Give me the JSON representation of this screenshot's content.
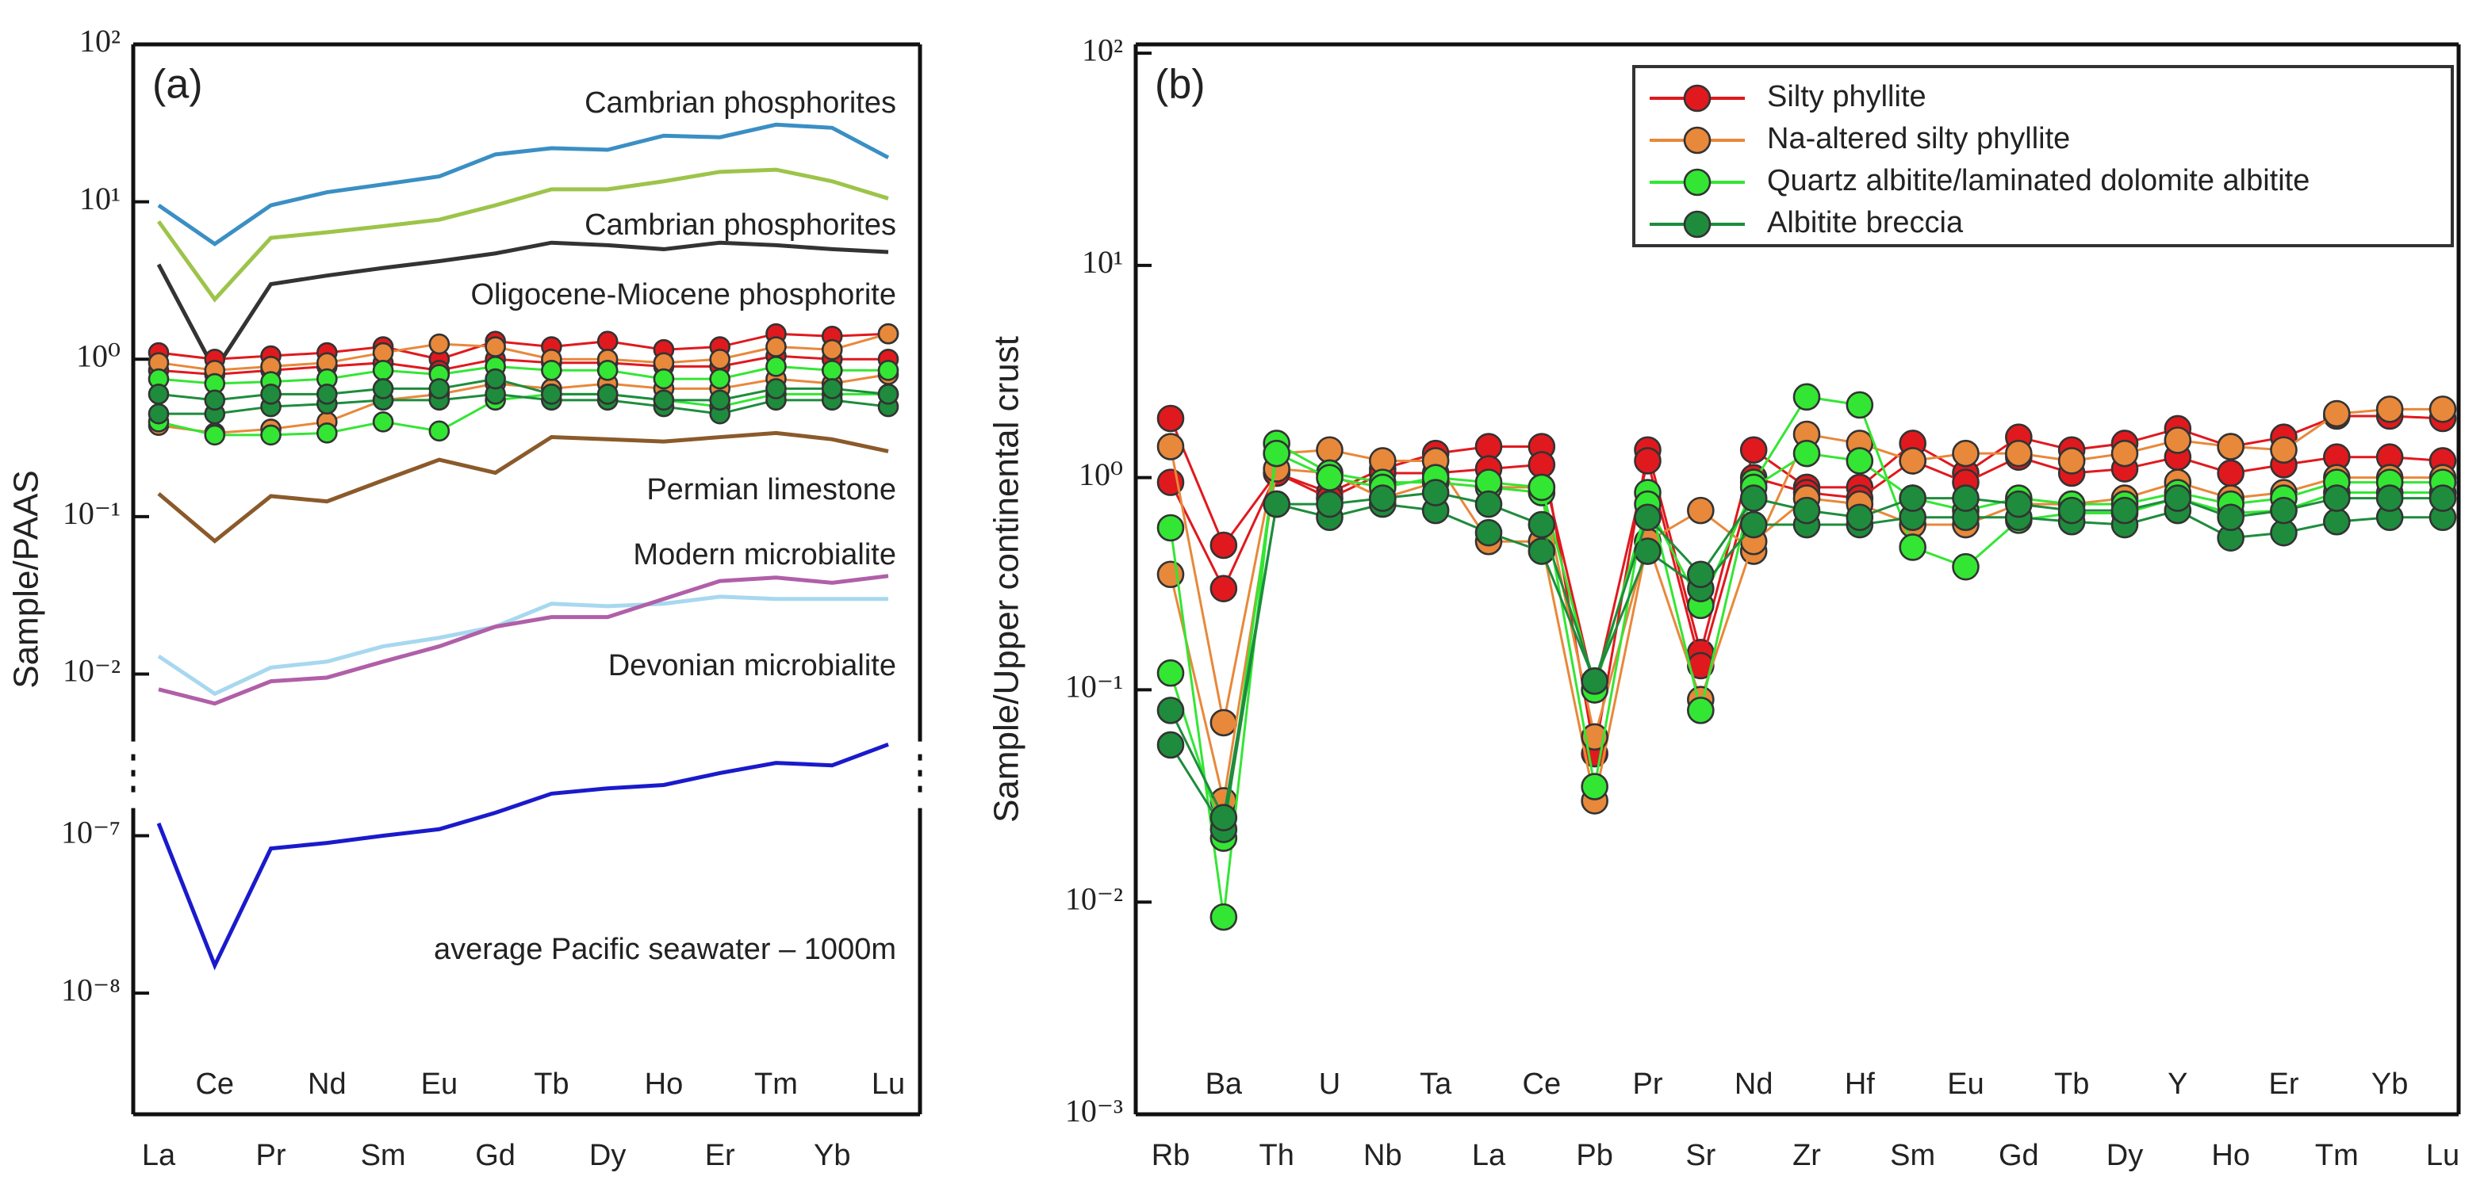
{
  "chart_data": [
    {
      "type": "line",
      "panel_label": "(a)",
      "y_label": "Sample/PAAS",
      "log_y": true,
      "categories": [
        "La",
        "Ce",
        "Pr",
        "Nd",
        "Sm",
        "Eu",
        "Gd",
        "Tb",
        "Dy",
        "Ho",
        "Er",
        "Tm",
        "Yb",
        "Lu"
      ],
      "y_segments": [
        {
          "ylim": [
            0.0047,
            100
          ],
          "yticks": [
            {
              "value": 100,
              "label": "10²"
            },
            {
              "value": 10,
              "label": "10¹"
            },
            {
              "value": 1,
              "label": "10⁰"
            },
            {
              "value": 0.1,
              "label": "10⁻¹"
            },
            {
              "value": 0.01,
              "label": "10⁻²"
            }
          ]
        },
        {
          "ylim": [
            1.7e-09,
            5e-07
          ],
          "yticks": [
            {
              "value": 1e-07,
              "label": "10⁻⁷"
            },
            {
              "value": 1e-08,
              "label": "10⁻⁸"
            }
          ]
        }
      ],
      "series": [
        {
          "color": "#e0191e",
          "samples": [
            [
              1.1,
              1.0,
              1.05,
              1.1,
              1.2,
              1.0,
              1.3,
              1.2,
              1.3,
              1.15,
              1.2,
              1.45,
              1.4,
              1.45
            ],
            [
              0.85,
              0.8,
              0.85,
              0.9,
              0.95,
              0.85,
              1.0,
              0.95,
              0.95,
              0.9,
              0.9,
              1.05,
              1.0,
              1.0
            ]
          ]
        },
        {
          "color": "#e8883a",
          "samples": [
            [
              0.38,
              0.34,
              0.36,
              0.4,
              0.55,
              0.6,
              0.7,
              0.65,
              0.7,
              0.65,
              0.65,
              0.75,
              0.7,
              0.8
            ],
            [
              0.95,
              0.85,
              0.9,
              0.95,
              1.1,
              1.25,
              1.2,
              1.0,
              1.0,
              0.95,
              1.0,
              1.2,
              1.15,
              1.45
            ]
          ]
        },
        {
          "color": "#33e633",
          "samples": [
            [
              0.4,
              0.33,
              0.33,
              0.34,
              0.4,
              0.35,
              0.55,
              0.6,
              0.6,
              0.55,
              0.5,
              0.6,
              0.6,
              0.6
            ],
            [
              0.75,
              0.7,
              0.72,
              0.75,
              0.85,
              0.8,
              0.9,
              0.85,
              0.85,
              0.75,
              0.75,
              0.9,
              0.85,
              0.85
            ]
          ]
        },
        {
          "color": "#1e8c3c",
          "samples": [
            [
              0.45,
              0.45,
              0.5,
              0.52,
              0.55,
              0.55,
              0.6,
              0.55,
              0.55,
              0.5,
              0.45,
              0.55,
              0.55,
              0.5
            ],
            [
              0.6,
              0.55,
              0.6,
              0.6,
              0.65,
              0.65,
              0.75,
              0.6,
              0.6,
              0.55,
              0.55,
              0.65,
              0.65,
              0.6
            ]
          ]
        }
      ],
      "reference_series": [
        {
          "name": "Cambrian phosphorites",
          "color": "#3a8fc4",
          "values": [
            9.5,
            5.4,
            9.5,
            11.5,
            12.9,
            14.5,
            20,
            21.9,
            21.4,
            26.3,
            25.7,
            30.9,
            29.5,
            19.1
          ]
        },
        {
          "name": "Cambrian phosphorites",
          "color": "#9dc44a",
          "values": [
            7.5,
            2.4,
            5.9,
            6.4,
            7.0,
            7.7,
            9.5,
            12,
            12,
            13.5,
            15.5,
            16,
            13.5,
            10.5
          ]
        },
        {
          "name": "Oligocene-Miocene phosphorite",
          "color": "#333333",
          "values": [
            4,
            0.85,
            3,
            3.4,
            3.8,
            4.2,
            4.7,
            5.5,
            5.3,
            5.0,
            5.5,
            5.3,
            5.0,
            4.8
          ]
        },
        {
          "name": "Permian limestone",
          "color": "#8b5a2b",
          "values": [
            0.14,
            0.07,
            0.135,
            0.125,
            0.17,
            0.23,
            0.19,
            0.32,
            0.31,
            0.3,
            0.32,
            0.34,
            0.31,
            0.26
          ]
        },
        {
          "name": "Modern microbialite",
          "color": "#a7d8ef",
          "values": [
            0.013,
            0.0075,
            0.011,
            0.012,
            0.015,
            0.017,
            0.02,
            0.028,
            0.027,
            0.028,
            0.031,
            0.03,
            0.03,
            0.03
          ]
        },
        {
          "name": "Devonian microbialite",
          "color": "#b05fa8",
          "values": [
            0.008,
            0.0065,
            0.009,
            0.0095,
            0.012,
            0.015,
            0.02,
            0.023,
            0.023,
            0.03,
            0.039,
            0.041,
            0.038,
            0.042
          ]
        },
        {
          "name": "average Pacific seawater – 1000m",
          "color": "#1a1acc",
          "values": [
            1.2e-07,
            1.5e-08,
            8.3e-08,
            9e-08,
            1e-07,
            1.1e-07,
            1.4e-07,
            1.85e-07,
            2e-07,
            2.1e-07,
            2.5e-07,
            2.9e-07,
            2.8e-07,
            3.8e-07
          ]
        }
      ]
    },
    {
      "type": "line",
      "panel_label": "(b)",
      "y_label": "Sample/Upper continental crust",
      "log_y": true,
      "legend": "top-right",
      "categories": [
        "Rb",
        "Ba",
        "Th",
        "U",
        "Nb",
        "Ta",
        "La",
        "Ce",
        "Pb",
        "Pr",
        "Sr",
        "Nd",
        "Zr",
        "Hf",
        "Sm",
        "Eu",
        "Gd",
        "Tb",
        "Dy",
        "Y",
        "Ho",
        "Er",
        "Tm",
        "Yb",
        "Lu"
      ],
      "ylim": [
        0.001,
        110
      ],
      "yticks": [
        {
          "value": 100,
          "label": "10²"
        },
        {
          "value": 10,
          "label": "10¹"
        },
        {
          "value": 1,
          "label": "10⁰"
        },
        {
          "value": 0.1,
          "label": "10⁻¹"
        },
        {
          "value": 0.01,
          "label": "10⁻²"
        },
        {
          "value": 0.001,
          "label": "10⁻³"
        }
      ],
      "series": [
        {
          "name": "Silty phyllite",
          "color": "#e0191e",
          "samples": [
            [
              1.9,
              0.48,
              1.05,
              0.85,
              1.1,
              1.3,
              1.4,
              1.4,
              0.05,
              1.35,
              0.15,
              1.35,
              0.9,
              0.9,
              1.45,
              1.05,
              1.55,
              1.35,
              1.45,
              1.7,
              1.4,
              1.55,
              1.95,
              1.95,
              1.9
            ],
            [
              0.95,
              0.3,
              1.05,
              0.8,
              1.05,
              1.05,
              1.1,
              1.15,
              0.1,
              1.2,
              0.13,
              1.0,
              0.85,
              0.8,
              1.2,
              0.95,
              1.25,
              1.05,
              1.1,
              1.25,
              1.05,
              1.15,
              1.25,
              1.25,
              1.2
            ]
          ]
        },
        {
          "name": "Na-altered silty phyllite",
          "color": "#e8883a",
          "samples": [
            [
              1.4,
              0.07,
              1.3,
              1.35,
              1.2,
              1.2,
              0.5,
              0.5,
              0.03,
              0.5,
              0.7,
              0.45,
              1.6,
              1.45,
              1.2,
              1.3,
              1.3,
              1.2,
              1.3,
              1.5,
              1.4,
              1.35,
              2.0,
              2.1,
              2.1
            ],
            [
              0.35,
              0.03,
              1.1,
              1.05,
              0.8,
              0.95,
              0.9,
              0.9,
              0.06,
              0.5,
              0.09,
              0.5,
              0.8,
              0.75,
              0.6,
              0.6,
              0.75,
              0.75,
              0.8,
              0.95,
              0.8,
              0.85,
              1.0,
              1.0,
              1.0
            ]
          ]
        },
        {
          "name": "Quartz albitite/laminated dolomite albitite",
          "color": "#33e633",
          "samples": [
            [
              0.58,
              0.0085,
              1.45,
              1.05,
              0.95,
              0.95,
              0.9,
              0.85,
              0.035,
              0.85,
              0.08,
              0.95,
              2.4,
              2.2,
              0.47,
              0.38,
              0.63,
              0.68,
              0.68,
              0.8,
              0.68,
              0.7,
              0.85,
              0.85,
              0.85
            ],
            [
              0.12,
              0.02,
              1.3,
              1.0,
              0.9,
              1.0,
              0.95,
              0.9,
              0.1,
              0.75,
              0.25,
              0.9,
              1.3,
              1.2,
              0.8,
              0.7,
              0.8,
              0.75,
              0.75,
              0.85,
              0.75,
              0.8,
              0.95,
              0.95,
              0.95
            ]
          ]
        },
        {
          "name": "Albitite breccia",
          "color": "#1e8c3c",
          "samples": [
            [
              0.055,
              0.022,
              0.75,
              0.65,
              0.75,
              0.7,
              0.55,
              0.45,
              0.11,
              0.45,
              0.3,
              0.6,
              0.6,
              0.6,
              0.65,
              0.65,
              0.65,
              0.62,
              0.6,
              0.7,
              0.52,
              0.55,
              0.62,
              0.65,
              0.65
            ],
            [
              0.08,
              0.025,
              0.75,
              0.75,
              0.8,
              0.85,
              0.75,
              0.6,
              0.11,
              0.65,
              0.35,
              0.8,
              0.7,
              0.65,
              0.8,
              0.8,
              0.75,
              0.7,
              0.7,
              0.8,
              0.65,
              0.7,
              0.8,
              0.8,
              0.8
            ]
          ]
        }
      ]
    }
  ]
}
